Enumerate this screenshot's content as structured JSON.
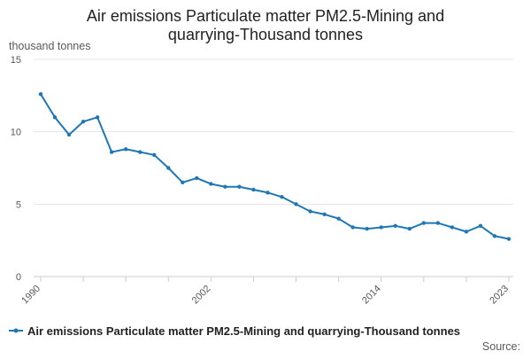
{
  "chart_data": {
    "type": "line",
    "title_lines": [
      "Air emissions Particulate matter PM2.5-Mining and",
      "quarrying-Thousand tonnes"
    ],
    "ylabel": "thousand tonnes",
    "xlabel": "",
    "x": [
      1990,
      1991,
      1992,
      1993,
      1994,
      1995,
      1996,
      1997,
      1998,
      1999,
      2000,
      2001,
      2002,
      2003,
      2004,
      2005,
      2006,
      2007,
      2008,
      2009,
      2010,
      2011,
      2012,
      2013,
      2014,
      2015,
      2016,
      2017,
      2018,
      2019,
      2020,
      2021,
      2022,
      2023
    ],
    "series": [
      {
        "name": "Air emissions Particulate matter PM2.5-Mining and quarrying-Thousand tonnes",
        "color": "#1f77b4",
        "values": [
          12.6,
          11.0,
          9.8,
          10.7,
          11.0,
          8.6,
          8.8,
          8.6,
          8.4,
          7.5,
          6.5,
          6.8,
          6.4,
          6.2,
          6.2,
          6.0,
          5.8,
          5.5,
          5.0,
          4.5,
          4.3,
          4.0,
          3.4,
          3.3,
          3.4,
          3.5,
          3.3,
          3.7,
          3.7,
          3.4,
          3.1,
          3.5,
          2.8,
          2.6
        ]
      }
    ],
    "ylim": [
      0,
      15
    ],
    "yticks": [
      0,
      5,
      10,
      15
    ],
    "xticks": [
      1990,
      2002,
      2014,
      2023
    ],
    "grid": true,
    "legend": "bottom-left",
    "source_label": "Source:"
  }
}
